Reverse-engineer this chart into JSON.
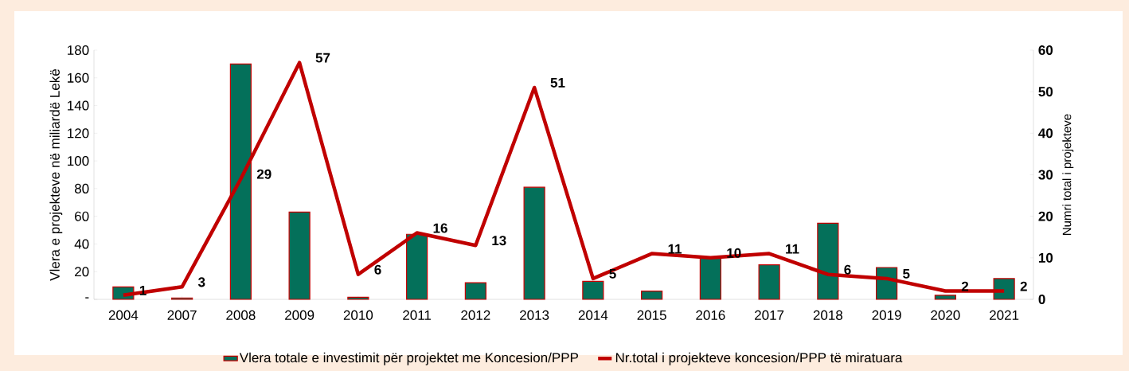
{
  "chart_data": {
    "type": "bar",
    "categories": [
      "2004",
      "2007",
      "2008",
      "2009",
      "2010",
      "2011",
      "2012",
      "2013",
      "2014",
      "2015",
      "2016",
      "2017",
      "2018",
      "2019",
      "2020",
      "2021"
    ],
    "series": [
      {
        "name": "Vlera totale e investimit për projektet me Koncesion/PPP",
        "color": "#04705a",
        "values": [
          9,
          1,
          170,
          63,
          1.5,
          47,
          12,
          81,
          13,
          6,
          30,
          25,
          55,
          23,
          3,
          15
        ]
      },
      {
        "name": "Nr.total i projekteve koncesion/PPP të miratuara",
        "type": "line",
        "axis": "y2",
        "color": "#c00000",
        "values": [
          1,
          3,
          29,
          57,
          6,
          16,
          13,
          51,
          5,
          11,
          10,
          11,
          6,
          5,
          2,
          2
        ],
        "value_labels": [
          "1",
          "3",
          "29",
          "57",
          "6",
          "16",
          "13",
          "51",
          "5",
          "11",
          "10",
          "11",
          "6",
          "5",
          "2",
          "2"
        ]
      }
    ],
    "ylabel": "Vlera e projekteve në miliardë Lekë",
    "y2label": "Numri total i projekteve",
    "ylim": [
      0,
      180
    ],
    "yticks": [
      {
        "value": 0,
        "label": "-"
      },
      20,
      40,
      60,
      80,
      100,
      120,
      140,
      160,
      180
    ],
    "y2lim": [
      0,
      60
    ],
    "y2ticks": [
      0,
      10,
      20,
      30,
      40,
      50,
      60
    ],
    "legend": "bottom"
  }
}
